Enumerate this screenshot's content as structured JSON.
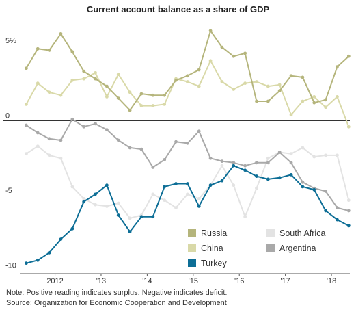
{
  "chart_data": {
    "type": "line",
    "title": "Current account balance as a share of GDP",
    "y_tick_labels": [
      {
        "value": 5,
        "label": "5%"
      },
      {
        "value": 0,
        "label": "0"
      },
      {
        "value": -5,
        "label": "-5"
      },
      {
        "value": -10,
        "label": "-10"
      }
    ],
    "x_ticks": [
      {
        "value": 2012,
        "label": "2012"
      },
      {
        "value": 2013,
        "label": "'13"
      },
      {
        "value": 2014,
        "label": "'14"
      },
      {
        "value": 2015,
        "label": "'15"
      },
      {
        "value": 2016,
        "label": "'16"
      },
      {
        "value": 2017,
        "label": "'17"
      },
      {
        "value": 2018,
        "label": "'18"
      }
    ],
    "xlim": [
      2011.25,
      2018.4
    ],
    "ylim": [
      -10.2,
      6.0
    ],
    "x": [
      2011.375,
      2011.625,
      2011.875,
      2012.125,
      2012.375,
      2012.625,
      2012.875,
      2013.125,
      2013.375,
      2013.625,
      2013.875,
      2014.125,
      2014.375,
      2014.625,
      2014.875,
      2015.125,
      2015.375,
      2015.625,
      2015.875,
      2016.125,
      2016.375,
      2016.625,
      2016.875,
      2017.125,
      2017.375,
      2017.625,
      2017.875,
      2018.125,
      2018.375
    ],
    "series": [
      {
        "name": "Russia",
        "color": "#b5b57c",
        "values": [
          3.5,
          4.8,
          4.7,
          5.8,
          4.6,
          3.3,
          2.8,
          2.3,
          1.5,
          0.7,
          1.8,
          1.7,
          1.7,
          2.7,
          3.0,
          3.4,
          6.0,
          4.9,
          4.3,
          4.5,
          1.3,
          1.3,
          2.0,
          3.0,
          2.9,
          1.2,
          1.4,
          3.6,
          4.3
        ]
      },
      {
        "name": "South Africa",
        "color": "#e3e3e3",
        "values": [
          -2.2,
          -1.7,
          -2.3,
          -2.5,
          -4.4,
          -5.2,
          -5.6,
          -5.7,
          -5.5,
          -6.5,
          -6.3,
          -4.9,
          -5.3,
          -5.8,
          -4.9,
          -5.2,
          -4.3,
          -3.0,
          -4.3,
          -6.4,
          -4.5,
          -2.5,
          -2.1,
          -2.2,
          -1.8,
          -2.4,
          -2.3,
          -2.3,
          -5.3
        ]
      },
      {
        "name": "China",
        "color": "#d9d9a8",
        "values": [
          1.1,
          2.5,
          1.9,
          1.7,
          2.7,
          2.8,
          3.2,
          1.6,
          3.1,
          1.9,
          1.0,
          1.0,
          1.1,
          2.8,
          2.6,
          2.3,
          4.0,
          2.6,
          2.1,
          2.5,
          2.6,
          2.3,
          2.4,
          0.4,
          1.3,
          1.6,
          0.9,
          1.6,
          -0.4
        ]
      },
      {
        "name": "Argentina",
        "color": "#a9a9a9",
        "values": [
          -0.3,
          -0.8,
          -1.2,
          -1.3,
          0.1,
          -0.4,
          -0.2,
          -0.6,
          -1.3,
          -1.8,
          -1.9,
          -3.1,
          -2.6,
          -1.4,
          -1.5,
          -0.7,
          -2.5,
          -2.7,
          -2.8,
          -3.0,
          -2.8,
          -2.8,
          -2.1,
          -2.8,
          -4.1,
          -4.5,
          -4.7,
          -5.8,
          -6.0
        ]
      },
      {
        "name": "Turkey",
        "color": "#0d6e96",
        "values": [
          -9.5,
          -9.3,
          -8.8,
          -7.9,
          -7.2,
          -5.4,
          -4.9,
          -4.3,
          -6.3,
          -7.4,
          -6.4,
          -6.4,
          -4.4,
          -4.2,
          -4.2,
          -5.7,
          -4.3,
          -4.0,
          -3.0,
          -3.3,
          -3.7,
          -3.9,
          -3.8,
          -3.6,
          -4.4,
          -4.6,
          -6.0,
          -6.6,
          -7.0
        ]
      }
    ],
    "draw_order": [
      "South Africa",
      "China",
      "Argentina",
      "Russia",
      "Turkey"
    ],
    "legend": {
      "placement": "bottom-right",
      "entries": [
        {
          "name": "Russia",
          "color": "#b5b57c"
        },
        {
          "name": "South Africa",
          "color": "#e3e3e3"
        },
        {
          "name": "China",
          "color": "#d9d9a8"
        },
        {
          "name": "Argentina",
          "color": "#a9a9a9"
        },
        {
          "name": "Turkey",
          "color": "#0d6e96"
        }
      ]
    },
    "grid": false
  },
  "footer": {
    "note": "Note: Positive reading indicates surplus. Negative indicates deficit.",
    "source": "Source: Organization for Economic Cooperation and Development"
  }
}
